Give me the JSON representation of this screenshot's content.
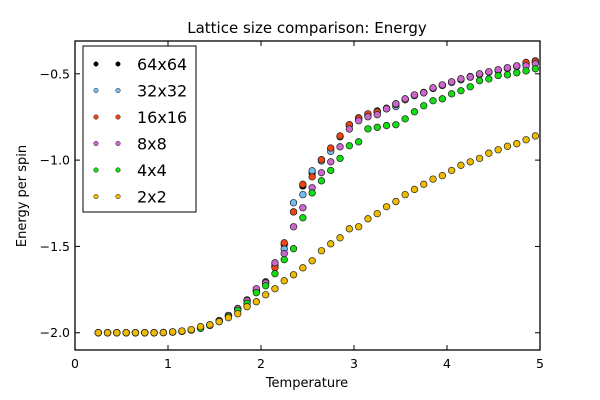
{
  "chart_data": {
    "type": "scatter",
    "title": "Lattice size comparison: Energy",
    "xlabel": "Temperature",
    "ylabel": "Energy per spin",
    "xlim": [
      0,
      5
    ],
    "ylim": [
      -2.1,
      -0.31
    ],
    "xticks": [
      0,
      1,
      2,
      3,
      4,
      5
    ],
    "xtick_labels": [
      "0",
      "1",
      "2",
      "3",
      "4",
      "5"
    ],
    "yticks": [
      -2.0,
      -1.5,
      -1.0,
      -0.5
    ],
    "ytick_labels": [
      "−2.0",
      "−1.5",
      "−1.0",
      "−0.5"
    ],
    "grid": false,
    "legend_position": "top-left",
    "x": [
      0.25,
      0.35,
      0.45,
      0.55,
      0.65,
      0.75,
      0.85,
      0.95,
      1.05,
      1.15,
      1.25,
      1.35,
      1.45,
      1.55,
      1.65,
      1.75,
      1.85,
      1.95,
      2.05,
      2.15,
      2.25,
      2.35,
      2.45,
      2.55,
      2.65,
      2.75,
      2.85,
      2.95,
      3.05,
      3.15,
      3.25,
      3.35,
      3.45,
      3.55,
      3.65,
      3.75,
      3.85,
      3.95,
      4.05,
      4.15,
      4.25,
      4.35,
      4.45,
      4.55,
      4.65,
      4.75,
      4.85,
      4.95
    ],
    "series": [
      {
        "name": "64x64",
        "color": "#000000",
        "values": [
          -2.0,
          -2.0,
          -2.0,
          -2.0,
          -2.0,
          -2.0,
          -2.0,
          -1.999,
          -1.996,
          -1.992,
          -1.984,
          -1.972,
          -1.955,
          -1.93,
          -1.9,
          -1.86,
          -1.81,
          -1.755,
          -1.705,
          -1.615,
          -1.49,
          -1.3,
          -1.15,
          -1.075,
          -0.998,
          -0.934,
          -0.865,
          -0.795,
          -0.755,
          -0.733,
          -0.715,
          -0.7,
          -0.674,
          -0.648,
          -0.625,
          -0.608,
          -0.585,
          -0.566,
          -0.548,
          -0.532,
          -0.518,
          -0.502,
          -0.49,
          -0.479,
          -0.467,
          -0.456,
          -0.437,
          -0.425
        ]
      },
      {
        "name": "32x32",
        "color": "#77bbee",
        "values": [
          -2.0,
          -2.0,
          -2.0,
          -2.0,
          -2.0,
          -2.0,
          -2.0,
          -1.999,
          -1.996,
          -1.992,
          -1.984,
          -1.972,
          -1.955,
          -1.93,
          -1.9,
          -1.86,
          -1.812,
          -1.757,
          -1.707,
          -1.61,
          -1.515,
          -1.247,
          -1.2,
          -1.062,
          -1.005,
          -0.95,
          -0.862,
          -0.8,
          -0.765,
          -0.74,
          -0.722,
          -0.703,
          -0.69,
          -0.65,
          -0.627,
          -0.61,
          -0.585,
          -0.568,
          -0.55,
          -0.535,
          -0.52,
          -0.505,
          -0.49,
          -0.481,
          -0.47,
          -0.458,
          -0.445,
          -0.432
        ]
      },
      {
        "name": "16x16",
        "color": "#ee4411",
        "values": [
          -2.0,
          -2.0,
          -2.0,
          -2.0,
          -2.0,
          -2.0,
          -2.0,
          -1.999,
          -1.996,
          -1.992,
          -1.984,
          -1.972,
          -1.955,
          -1.93,
          -1.9,
          -1.86,
          -1.812,
          -1.76,
          -1.71,
          -1.623,
          -1.479,
          -1.3,
          -1.14,
          -1.097,
          -0.998,
          -0.93,
          -0.86,
          -0.795,
          -0.757,
          -0.732,
          -0.72,
          -0.7,
          -0.678,
          -0.65,
          -0.624,
          -0.609,
          -0.583,
          -0.566,
          -0.548,
          -0.532,
          -0.516,
          -0.502,
          -0.49,
          -0.478,
          -0.466,
          -0.455,
          -0.434,
          -0.428
        ]
      },
      {
        "name": "8x8",
        "color": "#cc66cc",
        "values": [
          -2.0,
          -2.0,
          -2.0,
          -2.0,
          -2.0,
          -2.0,
          -2.0,
          -1.999,
          -1.996,
          -1.992,
          -1.984,
          -1.972,
          -1.955,
          -1.93,
          -1.9,
          -1.86,
          -1.815,
          -1.745,
          -1.712,
          -1.595,
          -1.542,
          -1.386,
          -1.276,
          -1.16,
          -1.073,
          -1.01,
          -0.923,
          -0.82,
          -0.772,
          -0.749,
          -0.737,
          -0.703,
          -0.674,
          -0.645,
          -0.622,
          -0.61,
          -0.581,
          -0.564,
          -0.546,
          -0.529,
          -0.518,
          -0.5,
          -0.488,
          -0.477,
          -0.465,
          -0.454,
          -0.454,
          -0.442
        ]
      },
      {
        "name": "4x4",
        "color": "#11dd11",
        "values": [
          -2.0,
          -2.0,
          -2.0,
          -2.0,
          -2.0,
          -2.0,
          -2.0,
          -1.999,
          -1.996,
          -1.992,
          -1.985,
          -1.975,
          -1.958,
          -1.935,
          -1.906,
          -1.87,
          -1.83,
          -1.768,
          -1.728,
          -1.658,
          -1.577,
          -1.513,
          -1.334,
          -1.19,
          -1.12,
          -1.06,
          -0.99,
          -0.917,
          -0.894,
          -0.819,
          -0.81,
          -0.8,
          -0.795,
          -0.761,
          -0.72,
          -0.685,
          -0.656,
          -0.645,
          -0.616,
          -0.598,
          -0.575,
          -0.54,
          -0.53,
          -0.51,
          -0.506,
          -0.494,
          -0.483,
          -0.471
        ]
      },
      {
        "name": "2x2",
        "color": "#eebb00",
        "values": [
          -2.0,
          -2.0,
          -2.0,
          -2.0,
          -2.0,
          -2.0,
          -2.0,
          -1.999,
          -1.995,
          -1.99,
          -1.982,
          -1.965,
          -1.954,
          -1.936,
          -1.913,
          -1.89,
          -1.849,
          -1.82,
          -1.78,
          -1.745,
          -1.699,
          -1.664,
          -1.624,
          -1.583,
          -1.525,
          -1.485,
          -1.45,
          -1.398,
          -1.386,
          -1.34,
          -1.31,
          -1.27,
          -1.24,
          -1.2,
          -1.17,
          -1.14,
          -1.11,
          -1.09,
          -1.06,
          -1.03,
          -1.01,
          -0.99,
          -0.96,
          -0.94,
          -0.92,
          -0.905,
          -0.882,
          -0.86
        ]
      }
    ]
  }
}
